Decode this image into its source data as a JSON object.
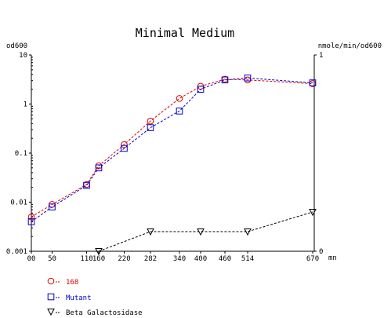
{
  "chart_data": {
    "type": "line",
    "title": "Minimal Medium",
    "xlabel": "",
    "x_unit": "mn",
    "y_left_label": "od600",
    "y_right_label": "nmole/min/od600",
    "y_left_scale": "log",
    "y_left_lim": [
      0.001,
      10
    ],
    "y_left_ticks": [
      "10",
      "1",
      "0.1",
      "0.01",
      "0.001"
    ],
    "y_right_lim": [
      0,
      1
    ],
    "y_right_ticks": [
      "1",
      "0"
    ],
    "x_lim": [
      0,
      670
    ],
    "x_ticks": [
      "00",
      "50",
      "110",
      "160",
      "220",
      "282",
      "340",
      "400",
      "460",
      "514",
      "670"
    ],
    "grid": false,
    "legend_position": "bottom-left",
    "series": [
      {
        "name": "168",
        "axis": "left",
        "marker": "circle",
        "color": "#dd0000",
        "x": [
          0,
          50,
          110,
          160,
          220,
          282,
          340,
          400,
          460,
          514,
          670
        ],
        "y": [
          0.005,
          0.009,
          0.023,
          0.055,
          0.15,
          0.45,
          1.3,
          2.3,
          3.2,
          3.1,
          2.6
        ]
      },
      {
        "name": "Mutant",
        "axis": "left",
        "marker": "square",
        "color": "#0000cc",
        "x": [
          0,
          50,
          110,
          160,
          220,
          282,
          340,
          400,
          460,
          514,
          670
        ],
        "y": [
          0.004,
          0.008,
          0.022,
          0.05,
          0.125,
          0.33,
          0.72,
          2.0,
          3.1,
          3.4,
          2.7
        ]
      },
      {
        "name": "Beta Galactosidase",
        "axis": "right",
        "marker": "triangle-down",
        "color": "#000000",
        "x": [
          160,
          282,
          400,
          514,
          670
        ],
        "y": [
          0.0,
          0.1,
          0.1,
          0.1,
          0.2
        ]
      }
    ]
  }
}
